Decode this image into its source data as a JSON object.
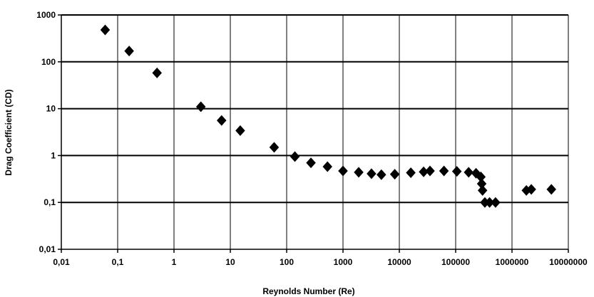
{
  "chart_data": {
    "type": "scatter",
    "title": "",
    "xlabel": "Reynolds Number (Re)",
    "ylabel": "Drag Coefficient (CD)",
    "x_scale": "log",
    "y_scale": "log",
    "xlim": [
      0.01,
      10000000
    ],
    "ylim": [
      0.01,
      1000
    ],
    "grid": true,
    "legend": "none",
    "marker": "diamond",
    "marker_color": "#000000",
    "x_tick_labels": [
      "0,01",
      "0,1",
      "1",
      "10",
      "100",
      "1000",
      "10000",
      "100000",
      "1000000",
      "10000000"
    ],
    "y_tick_labels": [
      "0,01",
      "0,1",
      "1",
      "10",
      "100",
      "1000"
    ],
    "points": [
      [
        0.06,
        480
      ],
      [
        0.16,
        170
      ],
      [
        0.5,
        58
      ],
      [
        3,
        11
      ],
      [
        7,
        5.6
      ],
      [
        15,
        3.4
      ],
      [
        60,
        1.5
      ],
      [
        140,
        0.95
      ],
      [
        270,
        0.7
      ],
      [
        530,
        0.58
      ],
      [
        1000,
        0.47
      ],
      [
        1900,
        0.44
      ],
      [
        3200,
        0.41
      ],
      [
        4800,
        0.39
      ],
      [
        8300,
        0.4
      ],
      [
        16000,
        0.43
      ],
      [
        27000,
        0.45
      ],
      [
        35000,
        0.47
      ],
      [
        62000,
        0.47
      ],
      [
        105000,
        0.46
      ],
      [
        170000,
        0.44
      ],
      [
        230000,
        0.42
      ],
      [
        280000,
        0.35
      ],
      [
        290000,
        0.25
      ],
      [
        300000,
        0.18
      ],
      [
        330000,
        0.1
      ],
      [
        400000,
        0.1
      ],
      [
        510000,
        0.1
      ],
      [
        1800000,
        0.18
      ],
      [
        2200000,
        0.19
      ],
      [
        5000000,
        0.19
      ]
    ]
  }
}
